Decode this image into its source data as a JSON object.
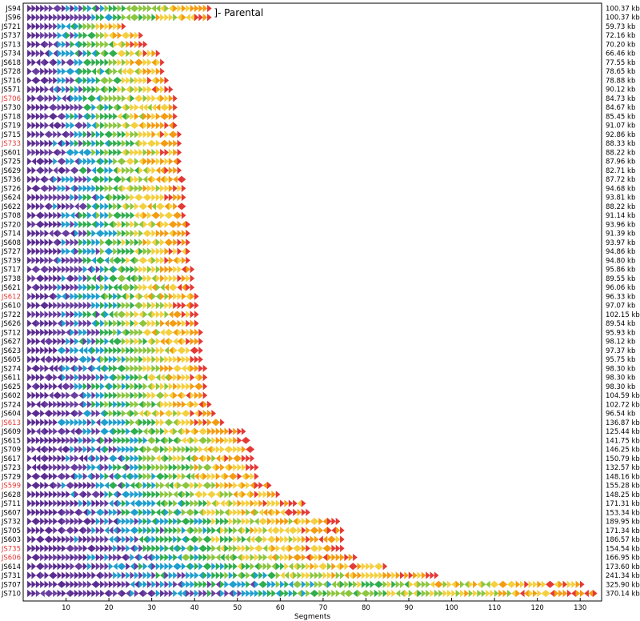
{
  "chart_data": {
    "type": "segment-arrays",
    "xlabel": "Segments",
    "xlim": [
      0,
      135
    ],
    "xticks": [
      10,
      20,
      30,
      40,
      50,
      60,
      70,
      80,
      90,
      100,
      110,
      120,
      130
    ],
    "annotation": "]- Parental",
    "palette": [
      "#5c2d91",
      "#6a3fa0",
      "#1f9fd0",
      "#2fae4e",
      "#8cc63f",
      "#f4d03f",
      "#f39c12",
      "#e53935"
    ],
    "colors": {
      "highlight_label": "#e53935",
      "label": "#000000"
    },
    "rows": [
      {
        "strain": "JS94",
        "size": "100.37 kb",
        "segments": 43,
        "highlight": false
      },
      {
        "strain": "JS96",
        "size": "100.37 kb",
        "segments": 43,
        "highlight": false
      },
      {
        "strain": "JS721",
        "size": "59.73 kb",
        "segments": 23,
        "highlight": false
      },
      {
        "strain": "JS737",
        "size": "72.16 kb",
        "segments": 27,
        "highlight": false
      },
      {
        "strain": "JS713",
        "size": "70.20 kb",
        "segments": 28,
        "highlight": false
      },
      {
        "strain": "JS734",
        "size": "66.46 kb",
        "segments": 31,
        "highlight": false
      },
      {
        "strain": "JS618",
        "size": "77.55 kb",
        "segments": 32,
        "highlight": false
      },
      {
        "strain": "JS728",
        "size": "78.65 kb",
        "segments": 32,
        "highlight": false
      },
      {
        "strain": "JS716",
        "size": "78.88 kb",
        "segments": 33,
        "highlight": false
      },
      {
        "strain": "JS571",
        "size": "90.12 kb",
        "segments": 34,
        "highlight": false
      },
      {
        "strain": "JS706",
        "size": "84.73 kb",
        "segments": 35,
        "highlight": true
      },
      {
        "strain": "JS730",
        "size": "84.67 kb",
        "segments": 35,
        "highlight": false
      },
      {
        "strain": "JS718",
        "size": "85.45 kb",
        "segments": 35,
        "highlight": false
      },
      {
        "strain": "JS719",
        "size": "91.07 kb",
        "segments": 35,
        "highlight": false
      },
      {
        "strain": "JS715",
        "size": "92.86 kb",
        "segments": 36,
        "highlight": false
      },
      {
        "strain": "JS733",
        "size": "88.33 kb",
        "segments": 36,
        "highlight": true
      },
      {
        "strain": "JS601",
        "size": "88.22 kb",
        "segments": 36,
        "highlight": false
      },
      {
        "strain": "JS725",
        "size": "87.96 kb",
        "segments": 36,
        "highlight": false
      },
      {
        "strain": "JS629",
        "size": "82.71 kb",
        "segments": 36,
        "highlight": false
      },
      {
        "strain": "JS736",
        "size": "87.72 kb",
        "segments": 37,
        "highlight": false
      },
      {
        "strain": "JS726",
        "size": "94.68 kb",
        "segments": 37,
        "highlight": false
      },
      {
        "strain": "JS624",
        "size": "93.81 kb",
        "segments": 37,
        "highlight": false
      },
      {
        "strain": "JS622",
        "size": "88.22 kb",
        "segments": 37,
        "highlight": false
      },
      {
        "strain": "JS708",
        "size": "91.14 kb",
        "segments": 37,
        "highlight": false
      },
      {
        "strain": "JS720",
        "size": "93.96 kb",
        "segments": 38,
        "highlight": false
      },
      {
        "strain": "JS714",
        "size": "91.39 kb",
        "segments": 38,
        "highlight": false
      },
      {
        "strain": "JS608",
        "size": "93.97 kb",
        "segments": 38,
        "highlight": false
      },
      {
        "strain": "JS727",
        "size": "94.86 kb",
        "segments": 38,
        "highlight": false
      },
      {
        "strain": "JS739",
        "size": "94.80 kb",
        "segments": 38,
        "highlight": false
      },
      {
        "strain": "JS717",
        "size": "95.86 kb",
        "segments": 39,
        "highlight": false
      },
      {
        "strain": "JS738",
        "size": "89.55 kb",
        "segments": 39,
        "highlight": false
      },
      {
        "strain": "JS621",
        "size": "96.06 kb",
        "segments": 39,
        "highlight": false
      },
      {
        "strain": "JS612",
        "size": "96.33 kb",
        "segments": 40,
        "highlight": true
      },
      {
        "strain": "JS610",
        "size": "97.07 kb",
        "segments": 40,
        "highlight": false
      },
      {
        "strain": "JS722",
        "size": "102.15 kb",
        "segments": 40,
        "highlight": false
      },
      {
        "strain": "JS626",
        "size": "89.54 kb",
        "segments": 40,
        "highlight": false
      },
      {
        "strain": "JS712",
        "size": "95.93 kb",
        "segments": 41,
        "highlight": false
      },
      {
        "strain": "JS627",
        "size": "98.12 kb",
        "segments": 41,
        "highlight": false
      },
      {
        "strain": "JS623",
        "size": "97.37 kb",
        "segments": 41,
        "highlight": false
      },
      {
        "strain": "JS605",
        "size": "95.75 kb",
        "segments": 41,
        "highlight": false
      },
      {
        "strain": "JS274",
        "size": "98.30 kb",
        "segments": 42,
        "highlight": false
      },
      {
        "strain": "JS611",
        "size": "98.30 kb",
        "segments": 42,
        "highlight": false
      },
      {
        "strain": "JS625",
        "size": "98.30 kb",
        "segments": 42,
        "highlight": false
      },
      {
        "strain": "JS602",
        "size": "104.59 kb",
        "segments": 42,
        "highlight": false
      },
      {
        "strain": "JS724",
        "size": "102.72 kb",
        "segments": 43,
        "highlight": false
      },
      {
        "strain": "JS604",
        "size": "96.54 kb",
        "segments": 44,
        "highlight": false
      },
      {
        "strain": "JS613",
        "size": "136.87 kb",
        "segments": 46,
        "highlight": true
      },
      {
        "strain": "JS609",
        "size": "125.44 kb",
        "segments": 51,
        "highlight": false
      },
      {
        "strain": "JS615",
        "size": "141.75 kb",
        "segments": 52,
        "highlight": false
      },
      {
        "strain": "JS709",
        "size": "146.25 kb",
        "segments": 53,
        "highlight": false
      },
      {
        "strain": "JS617",
        "size": "150.79 kb",
        "segments": 53,
        "highlight": false
      },
      {
        "strain": "JS723",
        "size": "132.57 kb",
        "segments": 54,
        "highlight": false
      },
      {
        "strain": "JS729",
        "size": "148.16 kb",
        "segments": 54,
        "highlight": false
      },
      {
        "strain": "JS599",
        "size": "155.28 kb",
        "segments": 57,
        "highlight": true
      },
      {
        "strain": "JS628",
        "size": "148.25 kb",
        "segments": 59,
        "highlight": false
      },
      {
        "strain": "JS711",
        "size": "171.31 kb",
        "segments": 65,
        "highlight": false
      },
      {
        "strain": "JS607",
        "size": "153.34 kb",
        "segments": 66,
        "highlight": false
      },
      {
        "strain": "JS732",
        "size": "189.95 kb",
        "segments": 73,
        "highlight": false
      },
      {
        "strain": "JS705",
        "size": "171.34 kb",
        "segments": 74,
        "highlight": false
      },
      {
        "strain": "JS603",
        "size": "186.57 kb",
        "segments": 74,
        "highlight": false
      },
      {
        "strain": "JS735",
        "size": "154.54 kb",
        "segments": 74,
        "highlight": true
      },
      {
        "strain": "JS606",
        "size": "166.95 kb",
        "segments": 77,
        "highlight": true
      },
      {
        "strain": "JS614",
        "size": "173.60 kb",
        "segments": 84,
        "highlight": false
      },
      {
        "strain": "JS731",
        "size": "241.34 kb",
        "segments": 96,
        "highlight": false
      },
      {
        "strain": "JS707",
        "size": "325.90 kb",
        "segments": 130,
        "highlight": false
      },
      {
        "strain": "JS710",
        "size": "370.14 kb",
        "segments": 133,
        "highlight": false
      }
    ]
  }
}
